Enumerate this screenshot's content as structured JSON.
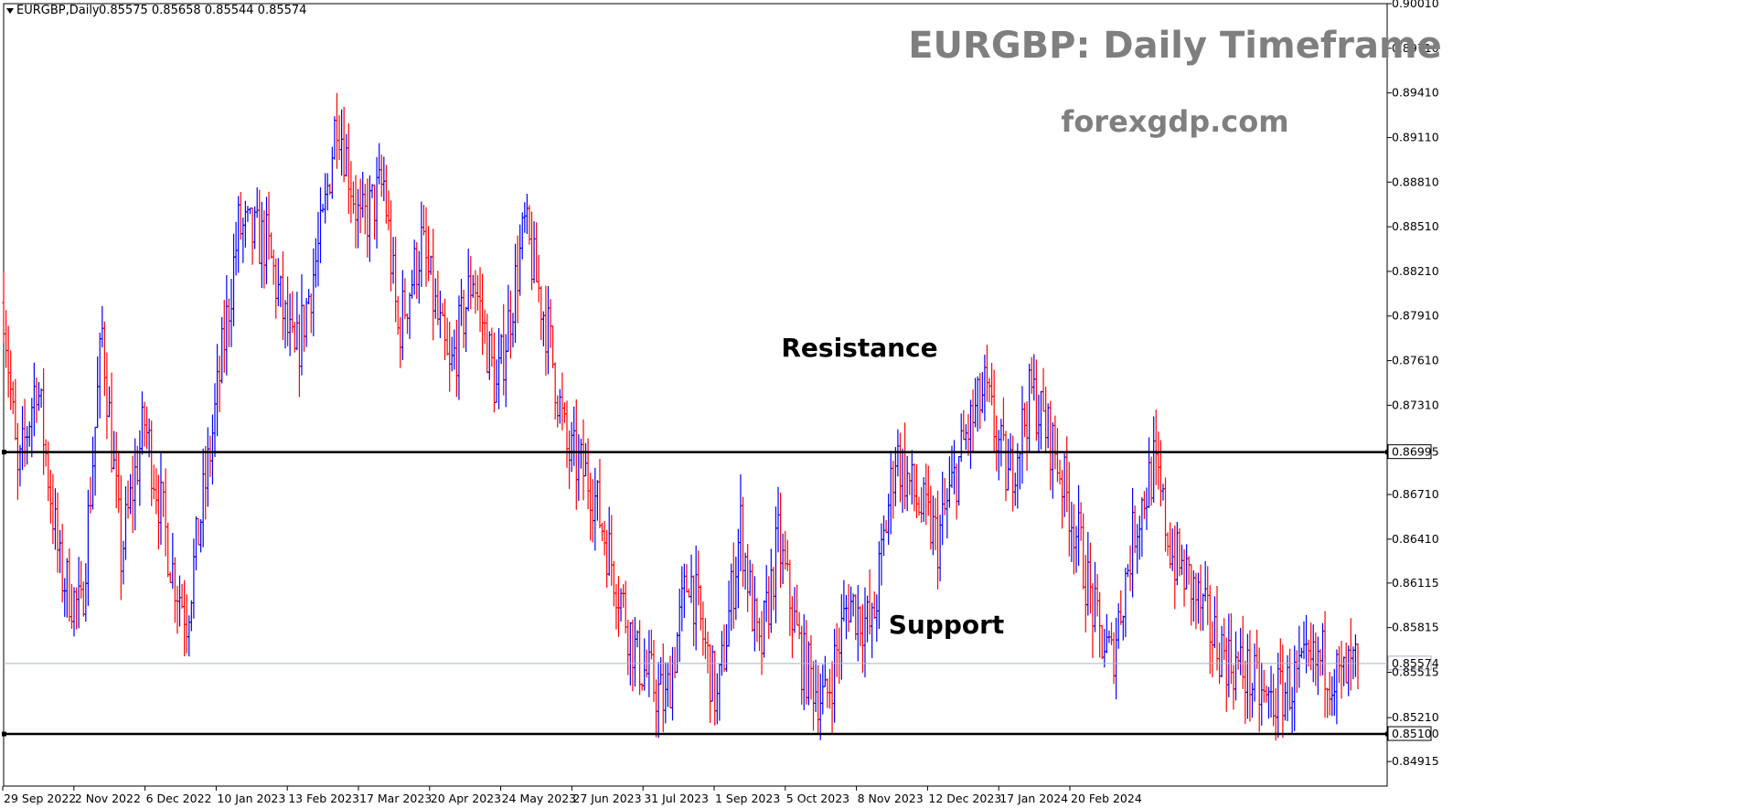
{
  "info_bar": {
    "symbol_label": "EURGBP,Daily",
    "ohlc": "0.85575 0.85658 0.85544 0.85574"
  },
  "colors": {
    "bull": "#0000ff",
    "bear": "#ff0000",
    "level_line": "#000000",
    "current_line": "#a9b4c2",
    "title_text": "#7f7f7f"
  },
  "chart_data": {
    "type": "candlestick",
    "title": "EURGBP: Daily Timeframe",
    "subtitle": "forexgdp.com",
    "ylim": [
      0.8475,
      0.9001
    ],
    "y_ticks": [
      "0.90010",
      "0.89710",
      "0.89410",
      "0.89110",
      "0.88810",
      "0.88510",
      "0.88210",
      "0.87910",
      "0.87610",
      "0.87310",
      "0.86995",
      "0.86710",
      "0.86410",
      "0.86115",
      "0.85815",
      "0.85574",
      "0.85515",
      "0.85210",
      "0.85100",
      "0.84915"
    ],
    "x_ticks": [
      "29 Sep 2022",
      "2 Nov 2022",
      "6 Dec 2022",
      "10 Jan 2023",
      "13 Feb 2023",
      "17 Mar 2023",
      "20 Apr 2023",
      "24 May 2023",
      "27 Jun 2023",
      "31 Jul 2023",
      "1 Sep 2023",
      "5 Oct 2023",
      "8 Nov 2023",
      "12 Dec 2023",
      "17 Jan 2024",
      "20 Feb 2024"
    ],
    "current_price": 0.85574,
    "levels": [
      {
        "name": "Resistance",
        "value": 0.86995
      },
      {
        "name": "Support",
        "value": 0.851
      }
    ],
    "close_path": [
      [
        0,
        0.88
      ],
      [
        6,
        0.868
      ],
      [
        14,
        0.875
      ],
      [
        24,
        0.862
      ],
      [
        33,
        0.859
      ],
      [
        42,
        0.878
      ],
      [
        50,
        0.863
      ],
      [
        60,
        0.872
      ],
      [
        72,
        0.862
      ],
      [
        78,
        0.859
      ],
      [
        88,
        0.87
      ],
      [
        100,
        0.885
      ],
      [
        112,
        0.884
      ],
      [
        124,
        0.876
      ],
      [
        136,
        0.885
      ],
      [
        142,
        0.893
      ],
      [
        152,
        0.885
      ],
      [
        162,
        0.888
      ],
      [
        168,
        0.878
      ],
      [
        178,
        0.884
      ],
      [
        190,
        0.875
      ],
      [
        200,
        0.882
      ],
      [
        210,
        0.874
      ],
      [
        222,
        0.885
      ],
      [
        232,
        0.878
      ],
      [
        240,
        0.87
      ],
      [
        250,
        0.868
      ],
      [
        260,
        0.862
      ],
      [
        270,
        0.856
      ],
      [
        282,
        0.853
      ],
      [
        292,
        0.862
      ],
      [
        304,
        0.853
      ],
      [
        314,
        0.865
      ],
      [
        322,
        0.856
      ],
      [
        330,
        0.864
      ],
      [
        340,
        0.856
      ],
      [
        350,
        0.853
      ],
      [
        360,
        0.86
      ],
      [
        370,
        0.858
      ],
      [
        380,
        0.87
      ],
      [
        388,
        0.867
      ],
      [
        398,
        0.864
      ],
      [
        410,
        0.871
      ],
      [
        418,
        0.874
      ],
      [
        428,
        0.868
      ],
      [
        438,
        0.874
      ],
      [
        448,
        0.87
      ],
      [
        458,
        0.864
      ],
      [
        466,
        0.858
      ],
      [
        472,
        0.856
      ],
      [
        482,
        0.865
      ],
      [
        490,
        0.869
      ],
      [
        498,
        0.863
      ],
      [
        506,
        0.861
      ],
      [
        514,
        0.858
      ],
      [
        522,
        0.856
      ],
      [
        530,
        0.855
      ],
      [
        538,
        0.853
      ],
      [
        546,
        0.854
      ],
      [
        554,
        0.855
      ],
      [
        562,
        0.856
      ],
      [
        570,
        0.8545
      ],
      [
        577,
        0.8557
      ]
    ]
  }
}
